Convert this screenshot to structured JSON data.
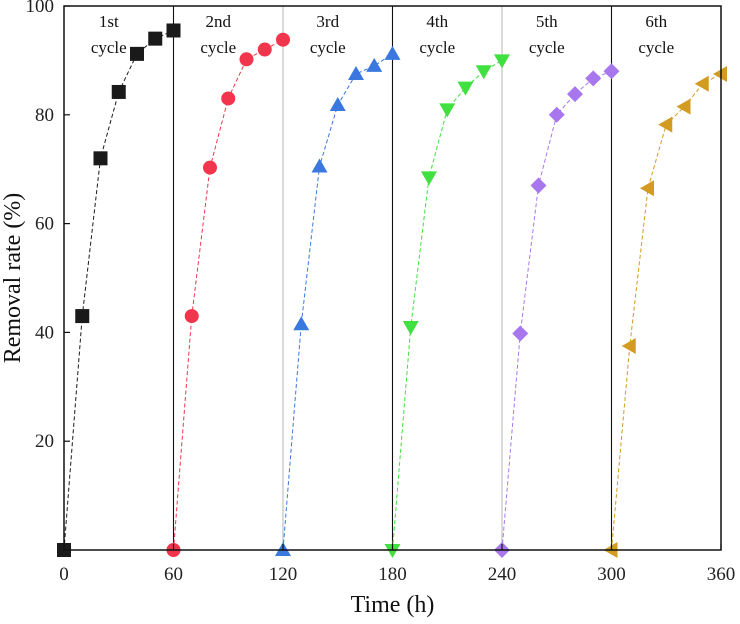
{
  "chart_data": {
    "type": "scatter",
    "xlabel": "Time (h)",
    "ylabel": "Removal rate (%)",
    "xlim": [
      0,
      360
    ],
    "ylim": [
      0,
      100
    ],
    "xticks": [
      "0",
      "60",
      "120",
      "180",
      "240",
      "300",
      "360"
    ],
    "yticks": [
      "20",
      "40",
      "60",
      "80",
      "100"
    ],
    "grid": false,
    "dividers": [
      60,
      120,
      180,
      240,
      300
    ],
    "cycle_labels": [
      {
        "line1": "1st",
        "line2": "cycle",
        "x_center": 30
      },
      {
        "line1": "2nd",
        "line2": "cycle",
        "x_center": 90
      },
      {
        "line1": "3rd",
        "line2": "cycle",
        "x_center": 150
      },
      {
        "line1": "4th",
        "line2": "cycle",
        "x_center": 210
      },
      {
        "line1": "5th",
        "line2": "cycle",
        "x_center": 270
      },
      {
        "line1": "6th",
        "line2": "cycle",
        "x_center": 330
      }
    ],
    "series": [
      {
        "marker": "square",
        "color": "#1a1a1a",
        "points": [
          [
            0,
            0
          ],
          [
            10,
            43
          ],
          [
            20,
            72
          ],
          [
            30,
            84.2
          ],
          [
            40,
            91.2
          ],
          [
            50,
            94
          ],
          [
            60,
            95.5
          ]
        ]
      },
      {
        "marker": "circle",
        "color": "#f0354c",
        "points": [
          [
            60,
            0
          ],
          [
            70,
            43
          ],
          [
            80,
            70.3
          ],
          [
            90,
            83
          ],
          [
            100,
            90.2
          ],
          [
            110,
            92
          ],
          [
            120,
            93.8
          ]
        ]
      },
      {
        "marker": "triangle-up",
        "color": "#3a78e0",
        "points": [
          [
            120,
            0
          ],
          [
            130,
            41.5
          ],
          [
            140,
            70.5
          ],
          [
            150,
            81.8
          ],
          [
            160,
            87.5
          ],
          [
            170,
            89
          ],
          [
            180,
            91.2
          ]
        ]
      },
      {
        "marker": "triangle-down",
        "color": "#3fe03f",
        "points": [
          [
            180,
            0
          ],
          [
            190,
            41
          ],
          [
            200,
            68.5
          ],
          [
            210,
            81
          ],
          [
            220,
            85
          ],
          [
            230,
            88
          ],
          [
            240,
            90
          ]
        ]
      },
      {
        "marker": "diamond",
        "color": "#a877ee",
        "points": [
          [
            240,
            0
          ],
          [
            250,
            39.8
          ],
          [
            260,
            67
          ],
          [
            270,
            80
          ],
          [
            280,
            83.8
          ],
          [
            290,
            86.7
          ],
          [
            300,
            88
          ]
        ]
      },
      {
        "marker": "triangle-left",
        "color": "#d29b22",
        "points": [
          [
            300,
            0
          ],
          [
            310,
            37.5
          ],
          [
            320,
            66.5
          ],
          [
            330,
            78.2
          ],
          [
            340,
            81.5
          ],
          [
            350,
            85.7
          ],
          [
            360,
            87.5
          ]
        ]
      }
    ]
  }
}
